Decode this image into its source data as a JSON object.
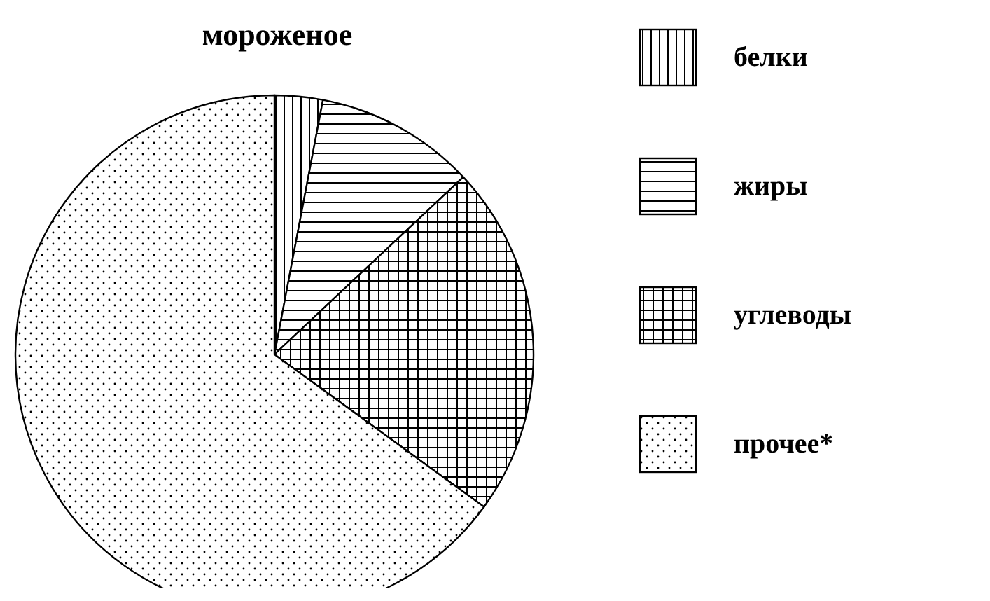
{
  "chart_data": {
    "type": "pie",
    "title": "мороженое",
    "categories": [
      "белки",
      "жиры",
      "углеводы",
      "прочее*"
    ],
    "values": [
      3,
      10,
      22,
      65
    ],
    "legend": "right"
  }
}
